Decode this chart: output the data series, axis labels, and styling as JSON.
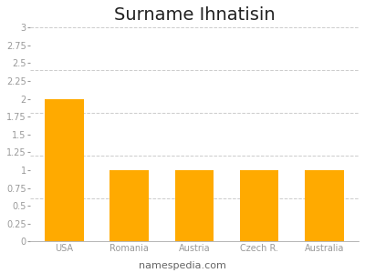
{
  "title": "Surname Ihnatisin",
  "categories": [
    "USA",
    "Romania",
    "Austria",
    "Czech R.",
    "Australia"
  ],
  "values": [
    2,
    1,
    1,
    1,
    1
  ],
  "bar_color": "#FFAA00",
  "ylim": [
    0,
    3
  ],
  "yticks": [
    0,
    0.25,
    0.5,
    0.75,
    1.0,
    1.25,
    1.5,
    1.75,
    2.0,
    2.25,
    2.5,
    2.75,
    3.0
  ],
  "grid_ticks": [
    0.6,
    1.2,
    1.8,
    2.4,
    3.0
  ],
  "title_fontsize": 14,
  "tick_fontsize": 7,
  "xlabel_bottom": "namespedia.com",
  "background_color": "#ffffff",
  "grid_color": "#cccccc",
  "tick_color": "#999999",
  "bar_width": 0.6
}
